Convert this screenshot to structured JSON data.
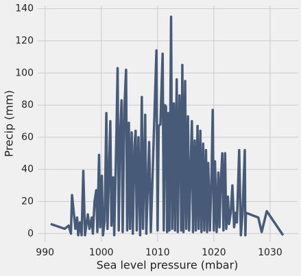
{
  "chart_data": {
    "type": "line",
    "x_label": "Sea level pressure (mbar)",
    "y_label": "Precip (mm)",
    "color": "#475a78",
    "grid": true,
    "xlim": [
      988.7,
      1035
    ],
    "ylim": [
      -5,
      142
    ],
    "xticks": [
      990,
      1000,
      1010,
      1020,
      1030
    ],
    "yticks": [
      0,
      20,
      40,
      60,
      80,
      100,
      120,
      140
    ],
    "x": [
      991,
      993.5,
      994.2,
      994.6,
      994.8,
      995.4,
      995.7,
      995.9,
      996.2,
      996.5,
      996.8,
      997.1,
      997.6,
      997.9,
      998.3,
      998.5,
      998.8,
      999.1,
      999.3,
      999.6,
      999.8,
      1000.1,
      1000.3,
      1000.6,
      1000.9,
      1001.1,
      1001.6,
      1001.8,
      1002.1,
      1002.3,
      1002.7,
      1002.9,
      1003.1,
      1003.3,
      1003.6,
      1003.8,
      1004.1,
      1004.4,
      1004.6,
      1004.9,
      1005.1,
      1005.4,
      1005.6,
      1005.9,
      1006.1,
      1006.3,
      1006.6,
      1006.9,
      1007.2,
      1007.4,
      1007.8,
      1008,
      1008.5,
      1008.8,
      1009.8,
      1010,
      1010.2,
      1010.5,
      1010.9,
      1011.1,
      1011.3,
      1011.5,
      1011.7,
      1011.9,
      1012.1,
      1012.4,
      1012.6,
      1012.9,
      1013.1,
      1013.4,
      1013.6,
      1013.9,
      1014.1,
      1014.2,
      1014.4,
      1014.6,
      1014.9,
      1015.1,
      1015.4,
      1015.6,
      1015.9,
      1016.1,
      1016.3,
      1016.6,
      1016.8,
      1017.1,
      1017.3,
      1017.6,
      1017.8,
      1018.1,
      1018.3,
      1018.6,
      1018.8,
      1019,
      1019.3,
      1019.6,
      1019.8,
      1020,
      1020.2,
      1020.5,
      1020.8,
      1021,
      1021.2,
      1021.5,
      1021.7,
      1022,
      1022.2,
      1022.5,
      1022.7,
      1023,
      1023.3,
      1023.6,
      1023.9,
      1024.1,
      1024.5,
      1024.8,
      1025.1,
      1025.5,
      1025.6,
      1025.7,
      1027.9,
      1028.5,
      1029.4,
      1032.3
    ],
    "values": [
      6,
      3,
      5,
      0,
      24,
      3,
      10,
      -1,
      7,
      -1,
      39,
      -1,
      12,
      3,
      10,
      0,
      20,
      27,
      1,
      49,
      4,
      36,
      -1,
      8,
      75,
      3,
      70,
      5,
      35,
      -1,
      64,
      103,
      2,
      57,
      83,
      1,
      78,
      102,
      2,
      69,
      3,
      63,
      0,
      55,
      64,
      2,
      60,
      -1,
      85,
      3,
      74,
      0,
      57,
      1,
      114,
      2,
      67,
      68,
      112,
      2,
      80,
      79,
      1,
      75,
      2,
      135,
      3,
      81,
      2,
      96,
      1,
      86,
      52,
      2,
      105,
      1,
      95,
      3,
      73,
      2,
      44,
      70,
      1,
      58,
      2,
      67,
      3,
      64,
      1,
      56,
      2,
      52,
      1,
      44,
      2,
      38,
      77,
      2,
      45,
      1,
      38,
      4,
      30,
      50,
      2,
      50,
      3,
      23,
      6,
      13,
      30,
      4,
      13,
      7,
      52,
      -1,
      13,
      52,
      -1,
      13,
      10,
      1,
      14,
      -1
    ]
  }
}
